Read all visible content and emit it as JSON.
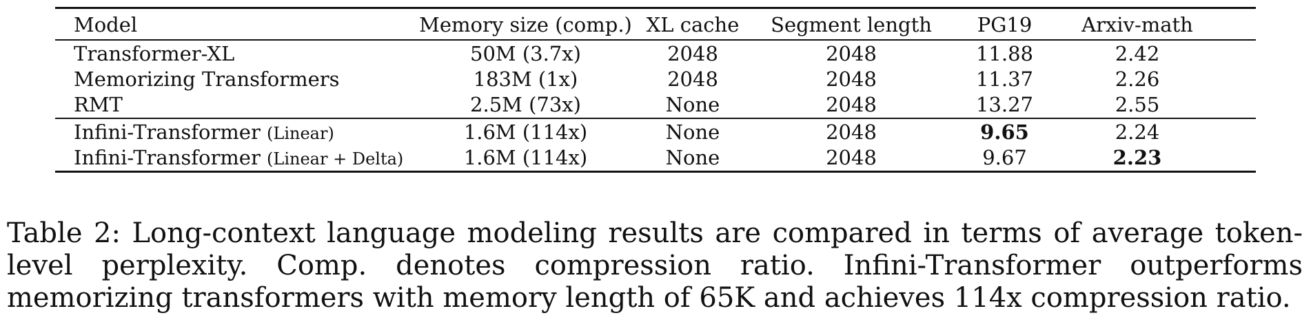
{
  "table": {
    "headers": [
      "Model",
      "Memory size (comp.)",
      "XL cache",
      "Segment length",
      "PG19",
      "Arxiv-math"
    ],
    "rows": [
      {
        "model": "Transformer-XL",
        "variant": "",
        "memory": "50M (3.7x)",
        "xl_cache": "2048",
        "segment": "2048",
        "pg19": "11.88",
        "arxiv": "2.42",
        "pg19_bold": false,
        "arxiv_bold": false
      },
      {
        "model": "Memorizing Transformers",
        "variant": "",
        "memory": "183M (1x)",
        "xl_cache": "2048",
        "segment": "2048",
        "pg19": "11.37",
        "arxiv": "2.26",
        "pg19_bold": false,
        "arxiv_bold": false
      },
      {
        "model": "RMT",
        "variant": "",
        "memory": "2.5M (73x)",
        "xl_cache": "None",
        "segment": "2048",
        "pg19": "13.27",
        "arxiv": "2.55",
        "pg19_bold": false,
        "arxiv_bold": false
      },
      {
        "model": "Infini-Transformer",
        "variant": "(Linear)",
        "memory": "1.6M (114x)",
        "xl_cache": "None",
        "segment": "2048",
        "pg19": "9.65",
        "arxiv": "2.24",
        "pg19_bold": true,
        "arxiv_bold": false
      },
      {
        "model": "Infini-Transformer",
        "variant": "(Linear + Delta)",
        "memory": "1.6M (114x)",
        "xl_cache": "None",
        "segment": "2048",
        "pg19": "9.67",
        "arxiv": "2.23",
        "pg19_bold": false,
        "arxiv_bold": true
      }
    ]
  },
  "caption": "Table 2: Long-context language modeling results are compared in terms of average token-level perplexity. Comp. denotes compression ratio. Infini-Transformer outperforms memorizing transformers with memory length of 65K and achieves 114x compression ratio."
}
